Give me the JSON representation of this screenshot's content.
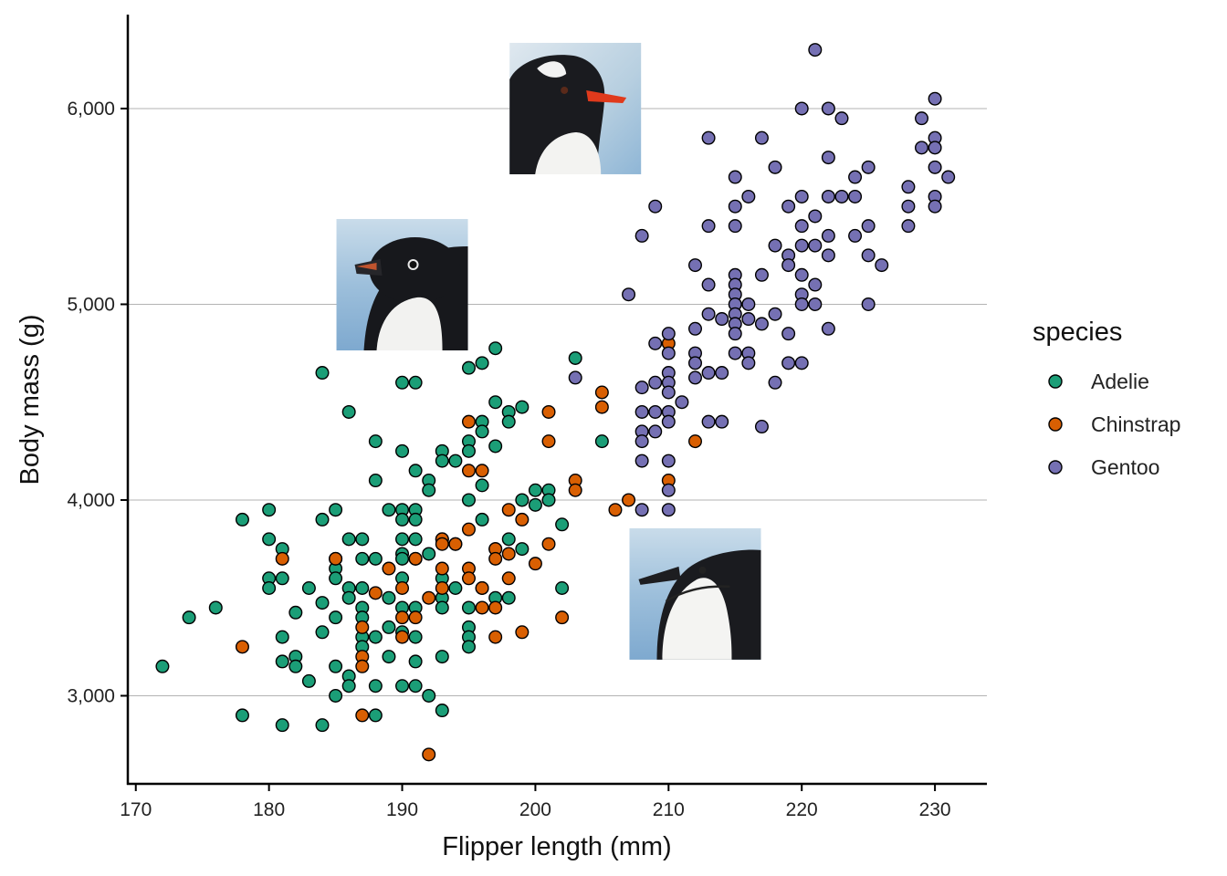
{
  "chart_data": {
    "type": "scatter",
    "xlabel": "Flipper length (mm)",
    "ylabel": "Body mass (g)",
    "xlim": [
      169.4,
      233.9
    ],
    "ylim": [
      2550,
      6480
    ],
    "x_ticks": [
      170,
      180,
      190,
      200,
      210,
      220,
      230
    ],
    "x_tick_labels": [
      "170",
      "180",
      "190",
      "200",
      "210",
      "220",
      "230"
    ],
    "y_ticks": [
      3000,
      4000,
      5000,
      6000
    ],
    "y_tick_labels": [
      "3,000",
      "4,000",
      "5,000",
      "6,000"
    ],
    "grid": "horizontal-major",
    "legend": {
      "title": "species",
      "placement": "right"
    },
    "species_images": [
      {
        "species": "Adelie",
        "icon": "adelie-penguin-head-photo",
        "x": 190,
        "y": 5100
      },
      {
        "species": "Gentoo",
        "icon": "gentoo-penguin-head-photo",
        "x": 203,
        "y": 6000
      },
      {
        "species": "Chinstrap",
        "icon": "chinstrap-penguin-head-photo",
        "x": 212,
        "y": 3520
      }
    ],
    "series": [
      {
        "name": "Adelie",
        "color": "#1B9E77",
        "points": [
          [
            172,
            3150
          ],
          [
            174,
            3400
          ],
          [
            176,
            3450
          ],
          [
            178,
            3900
          ],
          [
            178,
            2900
          ],
          [
            180,
            3950
          ],
          [
            180,
            3800
          ],
          [
            180,
            3600
          ],
          [
            180,
            3550
          ],
          [
            181,
            3750
          ],
          [
            181,
            3600
          ],
          [
            181,
            3300
          ],
          [
            181,
            3175
          ],
          [
            181,
            2850
          ],
          [
            182,
            3425
          ],
          [
            182,
            3200
          ],
          [
            182,
            3150
          ],
          [
            183,
            3550
          ],
          [
            183,
            3075
          ],
          [
            184,
            4650
          ],
          [
            184,
            3900
          ],
          [
            184,
            3475
          ],
          [
            184,
            3325
          ],
          [
            184,
            2850
          ],
          [
            185,
            3950
          ],
          [
            185,
            3700
          ],
          [
            185,
            3650
          ],
          [
            185,
            3600
          ],
          [
            185,
            3400
          ],
          [
            185,
            3150
          ],
          [
            185,
            3000
          ],
          [
            186,
            4450
          ],
          [
            186,
            3800
          ],
          [
            186,
            3550
          ],
          [
            186,
            3500
          ],
          [
            186,
            3100
          ],
          [
            186,
            3050
          ],
          [
            187,
            3800
          ],
          [
            187,
            3700
          ],
          [
            187,
            3550
          ],
          [
            187,
            3450
          ],
          [
            187,
            3400
          ],
          [
            187,
            3300
          ],
          [
            187,
            3250
          ],
          [
            188,
            4300
          ],
          [
            188,
            4100
          ],
          [
            188,
            3700
          ],
          [
            188,
            3300
          ],
          [
            188,
            3050
          ],
          [
            188,
            2900
          ],
          [
            189,
            3950
          ],
          [
            189,
            3500
          ],
          [
            189,
            3350
          ],
          [
            189,
            3200
          ],
          [
            190,
            4600
          ],
          [
            190,
            4250
          ],
          [
            190,
            3950
          ],
          [
            190,
            3900
          ],
          [
            190,
            3800
          ],
          [
            190,
            3725
          ],
          [
            190,
            3700
          ],
          [
            190,
            3600
          ],
          [
            190,
            3450
          ],
          [
            190,
            3325
          ],
          [
            190,
            3050
          ],
          [
            191,
            4600
          ],
          [
            191,
            4150
          ],
          [
            191,
            3950
          ],
          [
            191,
            3900
          ],
          [
            191,
            3800
          ],
          [
            191,
            3700
          ],
          [
            191,
            3450
          ],
          [
            191,
            3300
          ],
          [
            191,
            3175
          ],
          [
            191,
            3050
          ],
          [
            192,
            4100
          ],
          [
            192,
            4050
          ],
          [
            192,
            3725
          ],
          [
            192,
            3000
          ],
          [
            193,
            4250
          ],
          [
            193,
            4200
          ],
          [
            193,
            3800
          ],
          [
            193,
            3600
          ],
          [
            193,
            3500
          ],
          [
            193,
            3450
          ],
          [
            193,
            3200
          ],
          [
            193,
            2925
          ],
          [
            194,
            4200
          ],
          [
            194,
            3775
          ],
          [
            194,
            3550
          ],
          [
            195,
            4675
          ],
          [
            195,
            4300
          ],
          [
            195,
            4250
          ],
          [
            195,
            4000
          ],
          [
            195,
            3450
          ],
          [
            195,
            3350
          ],
          [
            195,
            3300
          ],
          [
            195,
            3250
          ],
          [
            196,
            4700
          ],
          [
            196,
            4400
          ],
          [
            196,
            4350
          ],
          [
            196,
            4075
          ],
          [
            196,
            3900
          ],
          [
            196,
            3550
          ],
          [
            197,
            4775
          ],
          [
            197,
            4500
          ],
          [
            197,
            4275
          ],
          [
            197,
            3750
          ],
          [
            197,
            3500
          ],
          [
            198,
            4450
          ],
          [
            198,
            4400
          ],
          [
            198,
            3800
          ],
          [
            198,
            3500
          ],
          [
            199,
            4475
          ],
          [
            199,
            4000
          ],
          [
            199,
            3750
          ],
          [
            200,
            4050
          ],
          [
            200,
            3975
          ],
          [
            201,
            4050
          ],
          [
            201,
            4000
          ],
          [
            202,
            3875
          ],
          [
            202,
            3550
          ],
          [
            203,
            4725
          ],
          [
            205,
            4300
          ]
        ]
      },
      {
        "name": "Chinstrap",
        "color": "#D95F02",
        "points": [
          [
            178,
            3250
          ],
          [
            181,
            3700
          ],
          [
            185,
            3700
          ],
          [
            187,
            3350
          ],
          [
            187,
            3200
          ],
          [
            187,
            3150
          ],
          [
            187,
            2900
          ],
          [
            188,
            3525
          ],
          [
            189,
            3650
          ],
          [
            190,
            3550
          ],
          [
            190,
            3400
          ],
          [
            190,
            3300
          ],
          [
            191,
            3700
          ],
          [
            191,
            3400
          ],
          [
            192,
            2700
          ],
          [
            192,
            3500
          ],
          [
            193,
            3800
          ],
          [
            193,
            3775
          ],
          [
            193,
            3650
          ],
          [
            193,
            3550
          ],
          [
            194,
            3775
          ],
          [
            195,
            4400
          ],
          [
            195,
            4150
          ],
          [
            195,
            3850
          ],
          [
            195,
            3650
          ],
          [
            195,
            3600
          ],
          [
            196,
            4150
          ],
          [
            196,
            3550
          ],
          [
            196,
            3450
          ],
          [
            197,
            3750
          ],
          [
            197,
            3700
          ],
          [
            197,
            3450
          ],
          [
            197,
            3300
          ],
          [
            198,
            3950
          ],
          [
            198,
            3725
          ],
          [
            198,
            3600
          ],
          [
            199,
            3900
          ],
          [
            199,
            3325
          ],
          [
            200,
            3675
          ],
          [
            201,
            4450
          ],
          [
            201,
            4300
          ],
          [
            201,
            3775
          ],
          [
            202,
            3400
          ],
          [
            203,
            4100
          ],
          [
            203,
            4050
          ],
          [
            205,
            4550
          ],
          [
            205,
            4475
          ],
          [
            206,
            3950
          ],
          [
            207,
            4000
          ],
          [
            210,
            4800
          ],
          [
            210,
            4100
          ],
          [
            212,
            4300
          ]
        ]
      },
      {
        "name": "Gentoo",
        "color": "#7570B3",
        "points": [
          [
            203,
            4625
          ],
          [
            207,
            5050
          ],
          [
            208,
            5350
          ],
          [
            208,
            4575
          ],
          [
            208,
            4450
          ],
          [
            208,
            4350
          ],
          [
            208,
            4300
          ],
          [
            208,
            4200
          ],
          [
            208,
            3950
          ],
          [
            209,
            5500
          ],
          [
            209,
            4800
          ],
          [
            209,
            4600
          ],
          [
            209,
            4450
          ],
          [
            209,
            4350
          ],
          [
            210,
            4850
          ],
          [
            210,
            4750
          ],
          [
            210,
            4650
          ],
          [
            210,
            4600
          ],
          [
            210,
            4550
          ],
          [
            210,
            4450
          ],
          [
            210,
            4400
          ],
          [
            210,
            4200
          ],
          [
            210,
            4050
          ],
          [
            210,
            3950
          ],
          [
            211,
            4500
          ],
          [
            212,
            5200
          ],
          [
            212,
            4875
          ],
          [
            212,
            4750
          ],
          [
            212,
            4700
          ],
          [
            212,
            4625
          ],
          [
            213,
            5850
          ],
          [
            213,
            5400
          ],
          [
            213,
            5100
          ],
          [
            213,
            4950
          ],
          [
            213,
            4650
          ],
          [
            213,
            4400
          ],
          [
            214,
            4925
          ],
          [
            214,
            4650
          ],
          [
            214,
            4400
          ],
          [
            215,
            5650
          ],
          [
            215,
            5500
          ],
          [
            215,
            5400
          ],
          [
            215,
            5150
          ],
          [
            215,
            5100
          ],
          [
            215,
            5050
          ],
          [
            215,
            5000
          ],
          [
            215,
            4950
          ],
          [
            215,
            4900
          ],
          [
            215,
            4850
          ],
          [
            215,
            4750
          ],
          [
            216,
            5550
          ],
          [
            216,
            5000
          ],
          [
            216,
            4925
          ],
          [
            216,
            4750
          ],
          [
            216,
            4700
          ],
          [
            217,
            5850
          ],
          [
            217,
            5150
          ],
          [
            217,
            4900
          ],
          [
            217,
            4375
          ],
          [
            218,
            5700
          ],
          [
            218,
            5300
          ],
          [
            218,
            4950
          ],
          [
            218,
            4600
          ],
          [
            219,
            5500
          ],
          [
            219,
            5250
          ],
          [
            219,
            5200
          ],
          [
            219,
            4850
          ],
          [
            219,
            4700
          ],
          [
            220,
            6000
          ],
          [
            220,
            5550
          ],
          [
            220,
            5400
          ],
          [
            220,
            5300
          ],
          [
            220,
            5150
          ],
          [
            220,
            5050
          ],
          [
            220,
            5000
          ],
          [
            220,
            4700
          ],
          [
            221,
            6300
          ],
          [
            221,
            5450
          ],
          [
            221,
            5300
          ],
          [
            221,
            5100
          ],
          [
            221,
            5000
          ],
          [
            222,
            6000
          ],
          [
            222,
            5750
          ],
          [
            222,
            5550
          ],
          [
            222,
            5350
          ],
          [
            222,
            5250
          ],
          [
            222,
            4875
          ],
          [
            223,
            5950
          ],
          [
            223,
            5550
          ],
          [
            224,
            5650
          ],
          [
            224,
            5550
          ],
          [
            224,
            5350
          ],
          [
            225,
            5700
          ],
          [
            225,
            5400
          ],
          [
            225,
            5250
          ],
          [
            225,
            5000
          ],
          [
            226,
            5200
          ],
          [
            228,
            5600
          ],
          [
            228,
            5500
          ],
          [
            228,
            5400
          ],
          [
            229,
            5950
          ],
          [
            229,
            5800
          ],
          [
            230,
            6050
          ],
          [
            230,
            5850
          ],
          [
            230,
            5800
          ],
          [
            230,
            5700
          ],
          [
            230,
            5550
          ],
          [
            230,
            5500
          ],
          [
            231,
            5650
          ]
        ]
      }
    ]
  }
}
